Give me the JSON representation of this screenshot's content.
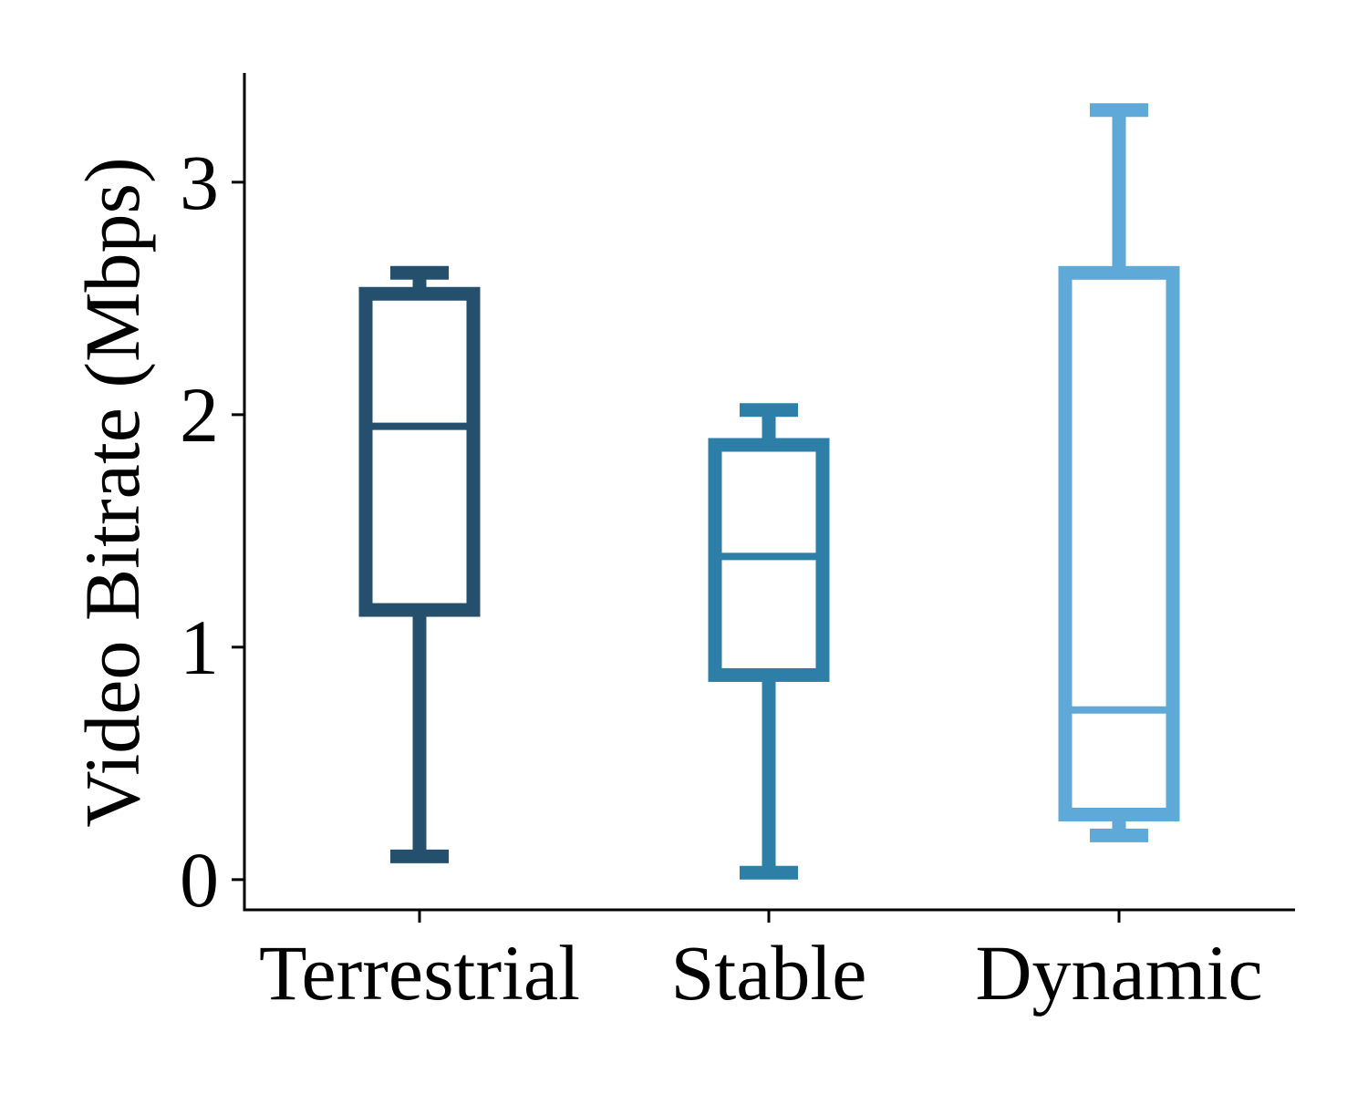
{
  "chart_data": {
    "type": "box",
    "title": "",
    "xlabel": "",
    "ylabel": "Video Bitrate (Mbps)",
    "ylim": [
      -0.13,
      3.47
    ],
    "yticks": [
      0,
      1,
      2,
      3
    ],
    "ytick_labels": [
      "0",
      "1",
      "2",
      "3"
    ],
    "grid": false,
    "legend": "none",
    "categories": [
      "Terrestrial",
      "Stable",
      "Dynamic"
    ],
    "boxes": [
      {
        "name": "Terrestrial",
        "whisker_low": 0.1,
        "q1": 1.16,
        "median": 1.95,
        "q3": 2.52,
        "whisker_high": 2.61,
        "color": "#24506e"
      },
      {
        "name": "Stable",
        "whisker_low": 0.03,
        "q1": 0.88,
        "median": 1.39,
        "q3": 1.87,
        "whisker_high": 2.02,
        "color": "#2e7fa8"
      },
      {
        "name": "Dynamic",
        "whisker_low": 0.19,
        "q1": 0.28,
        "median": 0.73,
        "q3": 2.61,
        "whisker_high": 3.31,
        "color": "#5ea9d8"
      }
    ]
  }
}
